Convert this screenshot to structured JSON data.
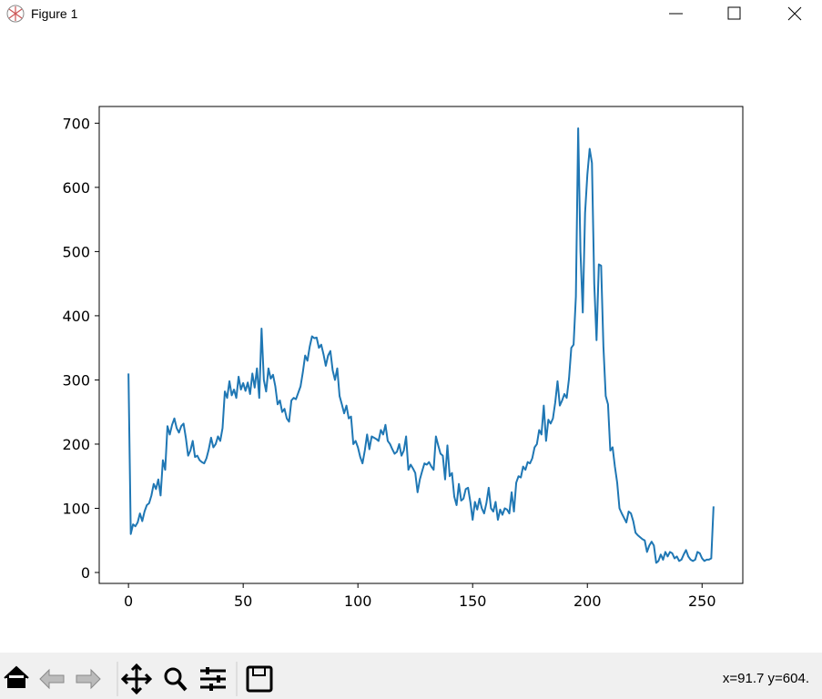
{
  "window_title": "Figure 1",
  "status_text": "x=91.7 y=604.",
  "chart_data": {
    "type": "line",
    "color": "#1f77b4",
    "x": [
      0,
      1,
      2,
      3,
      4,
      5,
      6,
      7,
      8,
      9,
      10,
      11,
      12,
      13,
      14,
      15,
      16,
      17,
      18,
      19,
      20,
      21,
      22,
      23,
      24,
      25,
      26,
      27,
      28,
      29,
      30,
      31,
      32,
      33,
      34,
      35,
      36,
      37,
      38,
      39,
      40,
      41,
      42,
      43,
      44,
      45,
      46,
      47,
      48,
      49,
      50,
      51,
      52,
      53,
      54,
      55,
      56,
      57,
      58,
      59,
      60,
      61,
      62,
      63,
      64,
      65,
      66,
      67,
      68,
      69,
      70,
      71,
      72,
      73,
      74,
      75,
      76,
      77,
      78,
      79,
      80,
      81,
      82,
      83,
      84,
      85,
      86,
      87,
      88,
      89,
      90,
      91,
      92,
      93,
      94,
      95,
      96,
      97,
      98,
      99,
      100,
      101,
      102,
      103,
      104,
      105,
      106,
      107,
      108,
      109,
      110,
      111,
      112,
      113,
      114,
      115,
      116,
      117,
      118,
      119,
      120,
      121,
      122,
      123,
      124,
      125,
      126,
      127,
      128,
      129,
      130,
      131,
      132,
      133,
      134,
      135,
      136,
      137,
      138,
      139,
      140,
      141,
      142,
      143,
      144,
      145,
      146,
      147,
      148,
      149,
      150,
      151,
      152,
      153,
      154,
      155,
      156,
      157,
      158,
      159,
      160,
      161,
      162,
      163,
      164,
      165,
      166,
      167,
      168,
      169,
      170,
      171,
      172,
      173,
      174,
      175,
      176,
      177,
      178,
      179,
      180,
      181,
      182,
      183,
      184,
      185,
      186,
      187,
      188,
      189,
      190,
      191,
      192,
      193,
      194,
      195,
      196,
      197,
      198,
      199,
      200,
      201,
      202,
      203,
      204,
      205,
      206,
      207,
      208,
      209,
      210,
      211,
      212,
      213,
      214,
      215,
      216,
      217,
      218,
      219,
      220,
      221,
      222,
      223,
      224,
      225,
      226,
      227,
      228,
      229,
      230,
      231,
      232,
      233,
      234,
      235,
      236,
      237,
      238,
      239,
      240,
      241,
      242,
      243,
      244,
      245,
      246,
      247,
      248,
      249,
      250,
      251,
      252,
      253,
      254,
      255
    ],
    "values": [
      310,
      60,
      75,
      72,
      78,
      92,
      80,
      95,
      105,
      108,
      120,
      138,
      130,
      145,
      120,
      175,
      160,
      228,
      215,
      230,
      240,
      225,
      218,
      228,
      232,
      210,
      182,
      190,
      205,
      180,
      182,
      175,
      172,
      170,
      178,
      192,
      210,
      195,
      200,
      212,
      205,
      225,
      282,
      272,
      298,
      276,
      285,
      272,
      305,
      285,
      295,
      283,
      296,
      278,
      310,
      288,
      318,
      272,
      380,
      300,
      282,
      318,
      302,
      308,
      290,
      262,
      268,
      250,
      255,
      240,
      235,
      268,
      272,
      270,
      280,
      290,
      312,
      338,
      330,
      352,
      368,
      365,
      366,
      350,
      355,
      340,
      322,
      338,
      345,
      315,
      300,
      318,
      275,
      262,
      248,
      260,
      240,
      243,
      200,
      205,
      195,
      180,
      170,
      190,
      215,
      192,
      212,
      210,
      208,
      205,
      222,
      215,
      230,
      205,
      200,
      192,
      185,
      188,
      200,
      182,
      190,
      212,
      160,
      168,
      162,
      155,
      125,
      145,
      158,
      170,
      168,
      172,
      165,
      160,
      212,
      198,
      185,
      182,
      145,
      198,
      150,
      155,
      118,
      105,
      138,
      112,
      115,
      130,
      132,
      110,
      82,
      110,
      98,
      115,
      100,
      92,
      108,
      132,
      100,
      95,
      110,
      82,
      98,
      90,
      100,
      98,
      92,
      125,
      95,
      140,
      150,
      148,
      165,
      160,
      172,
      170,
      178,
      195,
      200,
      222,
      215,
      260,
      205,
      238,
      232,
      240,
      265,
      298,
      260,
      268,
      278,
      272,
      302,
      350,
      355,
      430,
      692,
      500,
      405,
      560,
      620,
      660,
      638,
      450,
      362,
      480,
      478,
      352,
      275,
      262,
      190,
      195,
      165,
      140,
      100,
      92,
      85,
      78,
      95,
      92,
      80,
      62,
      58,
      55,
      52,
      50,
      32,
      42,
      48,
      42,
      15,
      18,
      28,
      20,
      32,
      25,
      32,
      30,
      22,
      25,
      18,
      20,
      28,
      35,
      25,
      20,
      18,
      20,
      32,
      30,
      22,
      18,
      20,
      20,
      22,
      103
    ],
    "xlim": [
      -12.75,
      267.75
    ],
    "xticks": [
      0,
      50,
      100,
      150,
      200,
      250
    ],
    "ylim": [
      -17,
      726
    ],
    "yticks": [
      0,
      100,
      200,
      300,
      400,
      500,
      600,
      700
    ]
  }
}
